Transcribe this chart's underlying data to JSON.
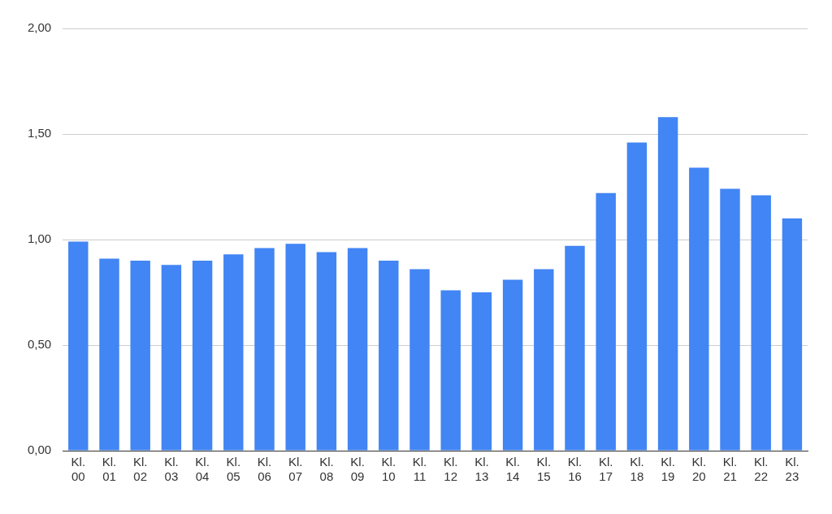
{
  "chart_data": {
    "type": "bar",
    "categories": [
      "Kl. 00",
      "Kl. 01",
      "Kl. 02",
      "Kl. 03",
      "Kl. 04",
      "Kl. 05",
      "Kl. 06",
      "Kl. 07",
      "Kl. 08",
      "Kl. 09",
      "Kl. 10",
      "Kl. 11",
      "Kl. 12",
      "Kl. 13",
      "Kl. 14",
      "Kl. 15",
      "Kl. 16",
      "Kl. 17",
      "Kl. 18",
      "Kl. 19",
      "Kl. 20",
      "Kl. 21",
      "Kl. 22",
      "Kl. 23"
    ],
    "values": [
      0.99,
      0.91,
      0.9,
      0.88,
      0.9,
      0.93,
      0.96,
      0.98,
      0.94,
      0.96,
      0.9,
      0.86,
      0.76,
      0.75,
      0.81,
      0.86,
      0.97,
      1.22,
      1.46,
      1.58,
      1.34,
      1.24,
      1.21,
      1.1
    ],
    "color": "#4285f4",
    "ylim": [
      0,
      2
    ],
    "yticks": [
      {
        "value": 0,
        "label": "0,00"
      },
      {
        "value": 0.5,
        "label": "0,50"
      },
      {
        "value": 1,
        "label": "1,00"
      },
      {
        "value": 1.5,
        "label": "1,50"
      },
      {
        "value": 2,
        "label": "2,00"
      }
    ],
    "grid": "y",
    "legend": false
  }
}
